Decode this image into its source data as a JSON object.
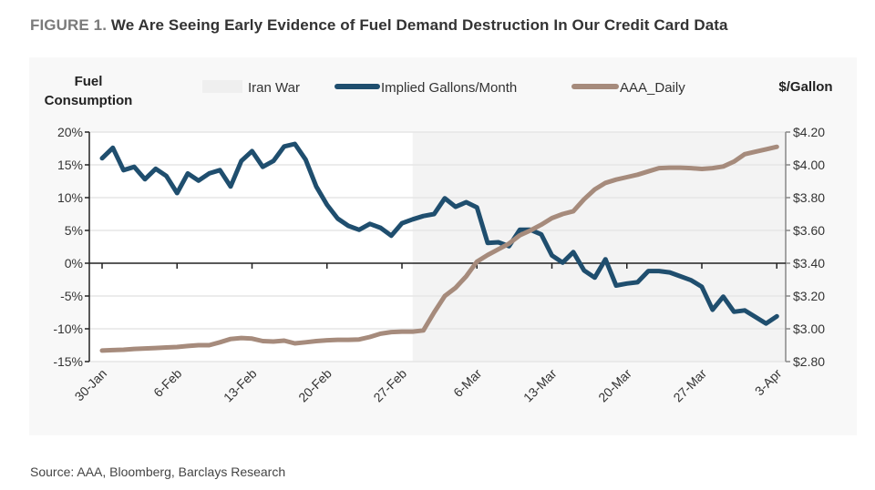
{
  "title_prefix": "FIGURE 1.",
  "title": "We Are Seeing Early Evidence of Fuel Demand Destruction In Our Credit Card Data",
  "source": "Source: AAA, Bloomberg, Barclays Research",
  "chart_data": {
    "type": "line",
    "title": "We Are Seeing Early Evidence of Fuel Demand Destruction In Our Credit Card Data",
    "ylabel_left_line1": "Fuel",
    "ylabel_left_line2": "Consumption",
    "ylabel_right": "$/Gallon",
    "x_start": "30-Jan",
    "x_ticks": [
      "30-Jan",
      "6-Feb",
      "13-Feb",
      "20-Feb",
      "27-Feb",
      "6-Mar",
      "13-Mar",
      "20-Mar",
      "27-Mar",
      "3-Apr"
    ],
    "y_left": {
      "min": -15,
      "max": 20,
      "step": 5,
      "ticks": [
        "-15%",
        "-10%",
        "-5%",
        "0%",
        "5%",
        "10%",
        "15%",
        "20%"
      ]
    },
    "y_right": {
      "min": 2.8,
      "max": 4.2,
      "step": 0.2,
      "ticks": [
        "$2.80",
        "$3.00",
        "$3.20",
        "$3.40",
        "$3.60",
        "$3.80",
        "$4.00",
        "$4.20"
      ]
    },
    "grid": true,
    "legend_position": "top",
    "shaded_region": {
      "name": "Iran War",
      "start": "28-Feb",
      "end": "3-Apr",
      "color": "#f3f3f3"
    },
    "series": [
      {
        "name": "Implied Gallons/Month",
        "axis": "left",
        "color": "#1f4e6e",
        "values": [
          16.0,
          17.6,
          14.2,
          14.7,
          12.8,
          14.4,
          13.3,
          10.7,
          13.7,
          12.6,
          13.7,
          14.2,
          11.7,
          15.6,
          17.1,
          14.7,
          15.6,
          17.8,
          18.2,
          15.8,
          11.7,
          8.9,
          6.8,
          5.7,
          5.1,
          6.0,
          5.4,
          4.2,
          6.1,
          6.7,
          7.2,
          7.5,
          9.9,
          8.6,
          9.3,
          8.5,
          3.1,
          3.2,
          2.6,
          5.1,
          5.1,
          4.4,
          1.2,
          0.1,
          1.7,
          -1.1,
          -2.2,
          0.6,
          -3.4,
          -3.1,
          -2.9,
          -1.2,
          -1.2,
          -1.4,
          -2.0,
          -2.6,
          -3.6,
          -7.1,
          -5.1,
          -7.4,
          -7.2,
          -8.2,
          -9.2,
          -8.1
        ]
      },
      {
        "name": "AAA_Daily",
        "axis": "right",
        "color": "#a68b7c",
        "values": [
          2.867,
          2.87,
          2.872,
          2.877,
          2.88,
          2.883,
          2.886,
          2.889,
          2.895,
          2.9,
          2.9,
          2.918,
          2.938,
          2.944,
          2.94,
          2.925,
          2.922,
          2.928,
          2.911,
          2.918,
          2.925,
          2.93,
          2.933,
          2.933,
          2.935,
          2.95,
          2.97,
          2.98,
          2.983,
          2.983,
          2.99,
          3.1,
          3.2,
          3.25,
          3.32,
          3.41,
          3.45,
          3.485,
          3.52,
          3.57,
          3.6,
          3.635,
          3.675,
          3.7,
          3.717,
          3.79,
          3.85,
          3.89,
          3.91,
          3.925,
          3.94,
          3.96,
          3.98,
          3.983,
          3.983,
          3.98,
          3.975,
          3.98,
          3.99,
          4.02,
          4.065,
          4.08,
          4.095,
          4.11
        ]
      }
    ]
  }
}
